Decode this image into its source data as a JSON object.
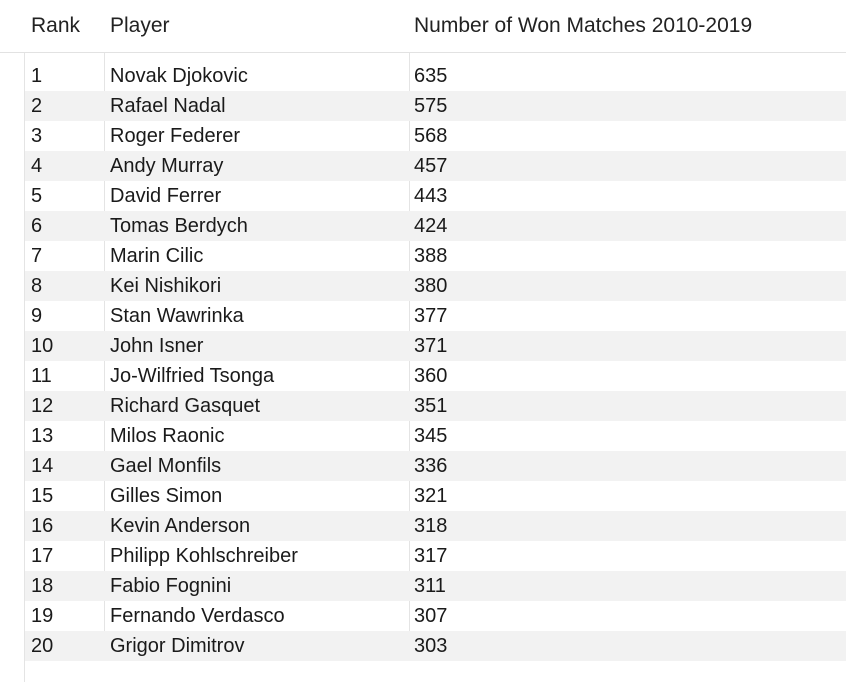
{
  "columns": {
    "rank": "Rank",
    "player": "Player",
    "wins": "Number of Won Matches 2010-2019"
  },
  "rows": [
    {
      "rank": "1",
      "player": "Novak Djokovic",
      "wins": "635"
    },
    {
      "rank": "2",
      "player": "Rafael Nadal",
      "wins": "575"
    },
    {
      "rank": "3",
      "player": "Roger Federer",
      "wins": "568"
    },
    {
      "rank": "4",
      "player": "Andy Murray",
      "wins": "457"
    },
    {
      "rank": "5",
      "player": "David Ferrer",
      "wins": "443"
    },
    {
      "rank": "6",
      "player": "Tomas Berdych",
      "wins": "424"
    },
    {
      "rank": "7",
      "player": "Marin Cilic",
      "wins": "388"
    },
    {
      "rank": "8",
      "player": "Kei Nishikori",
      "wins": "380"
    },
    {
      "rank": "9",
      "player": "Stan Wawrinka",
      "wins": "377"
    },
    {
      "rank": "10",
      "player": "John Isner",
      "wins": "371"
    },
    {
      "rank": "11",
      "player": "Jo-Wilfried Tsonga",
      "wins": "360"
    },
    {
      "rank": "12",
      "player": "Richard Gasquet",
      "wins": "351"
    },
    {
      "rank": "13",
      "player": "Milos Raonic",
      "wins": "345"
    },
    {
      "rank": "14",
      "player": "Gael Monfils",
      "wins": "336"
    },
    {
      "rank": "15",
      "player": "Gilles Simon",
      "wins": "321"
    },
    {
      "rank": "16",
      "player": "Kevin Anderson",
      "wins": "318"
    },
    {
      "rank": "17",
      "player": "Philipp Kohlschreiber",
      "wins": "317"
    },
    {
      "rank": "18",
      "player": "Fabio Fognini",
      "wins": "311"
    },
    {
      "rank": "19",
      "player": "Fernando Verdasco",
      "wins": "307"
    },
    {
      "rank": "20",
      "player": "Grigor Dimitrov",
      "wins": "303"
    }
  ]
}
